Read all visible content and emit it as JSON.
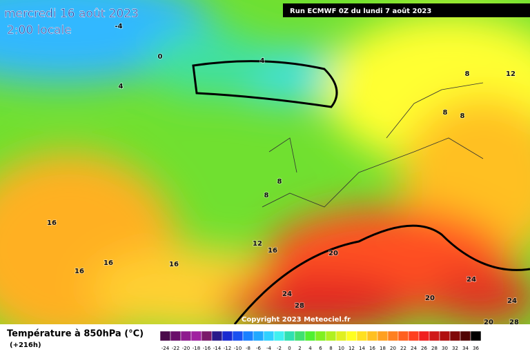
{
  "header": {
    "date": "mercredi 16 août 2023",
    "time": "2:00 locale",
    "run": "Run ECMWF 0Z du lundi 7 août 2023"
  },
  "map": {
    "contour_labels": [
      "-4",
      "0",
      "4",
      "4",
      "8",
      "12",
      "8",
      "8",
      "8",
      "8",
      "16",
      "12",
      "16",
      "20",
      "16",
      "16",
      "16",
      "24",
      "24",
      "20",
      "24",
      "28",
      "20",
      "28"
    ],
    "copyright": "Copyright 2023 Meteociel.fr"
  },
  "footer": {
    "title": "Température à 850hPa (°C)",
    "lead": "(+216h)"
  },
  "colorbar": {
    "labels": [
      "-24",
      "-22",
      "-20",
      "-18",
      "-16",
      "-14",
      "-12",
      "-10",
      "-8",
      "-6",
      "-4",
      "-2",
      "0",
      "2",
      "4",
      "6",
      "8",
      "10",
      "12",
      "14",
      "16",
      "18",
      "20",
      "22",
      "24",
      "26",
      "28",
      "30",
      "32",
      "34",
      "36"
    ],
    "colors": [
      "#4a0a4a",
      "#6a0e6a",
      "#8e1a8e",
      "#a020a0",
      "#7a1a6a",
      "#2a1a8a",
      "#1a2ad0",
      "#1a50f0",
      "#1a80ff",
      "#20a8ff",
      "#30d0ff",
      "#40f0f0",
      "#30e0b0",
      "#40e070",
      "#50f030",
      "#80f020",
      "#b0f020",
      "#e0f020",
      "#ffff20",
      "#ffe020",
      "#ffc020",
      "#ffa020",
      "#ff8020",
      "#ff6020",
      "#ff4020",
      "#f02020",
      "#d01818",
      "#b01010",
      "#800808",
      "#500404",
      "#000000"
    ]
  }
}
